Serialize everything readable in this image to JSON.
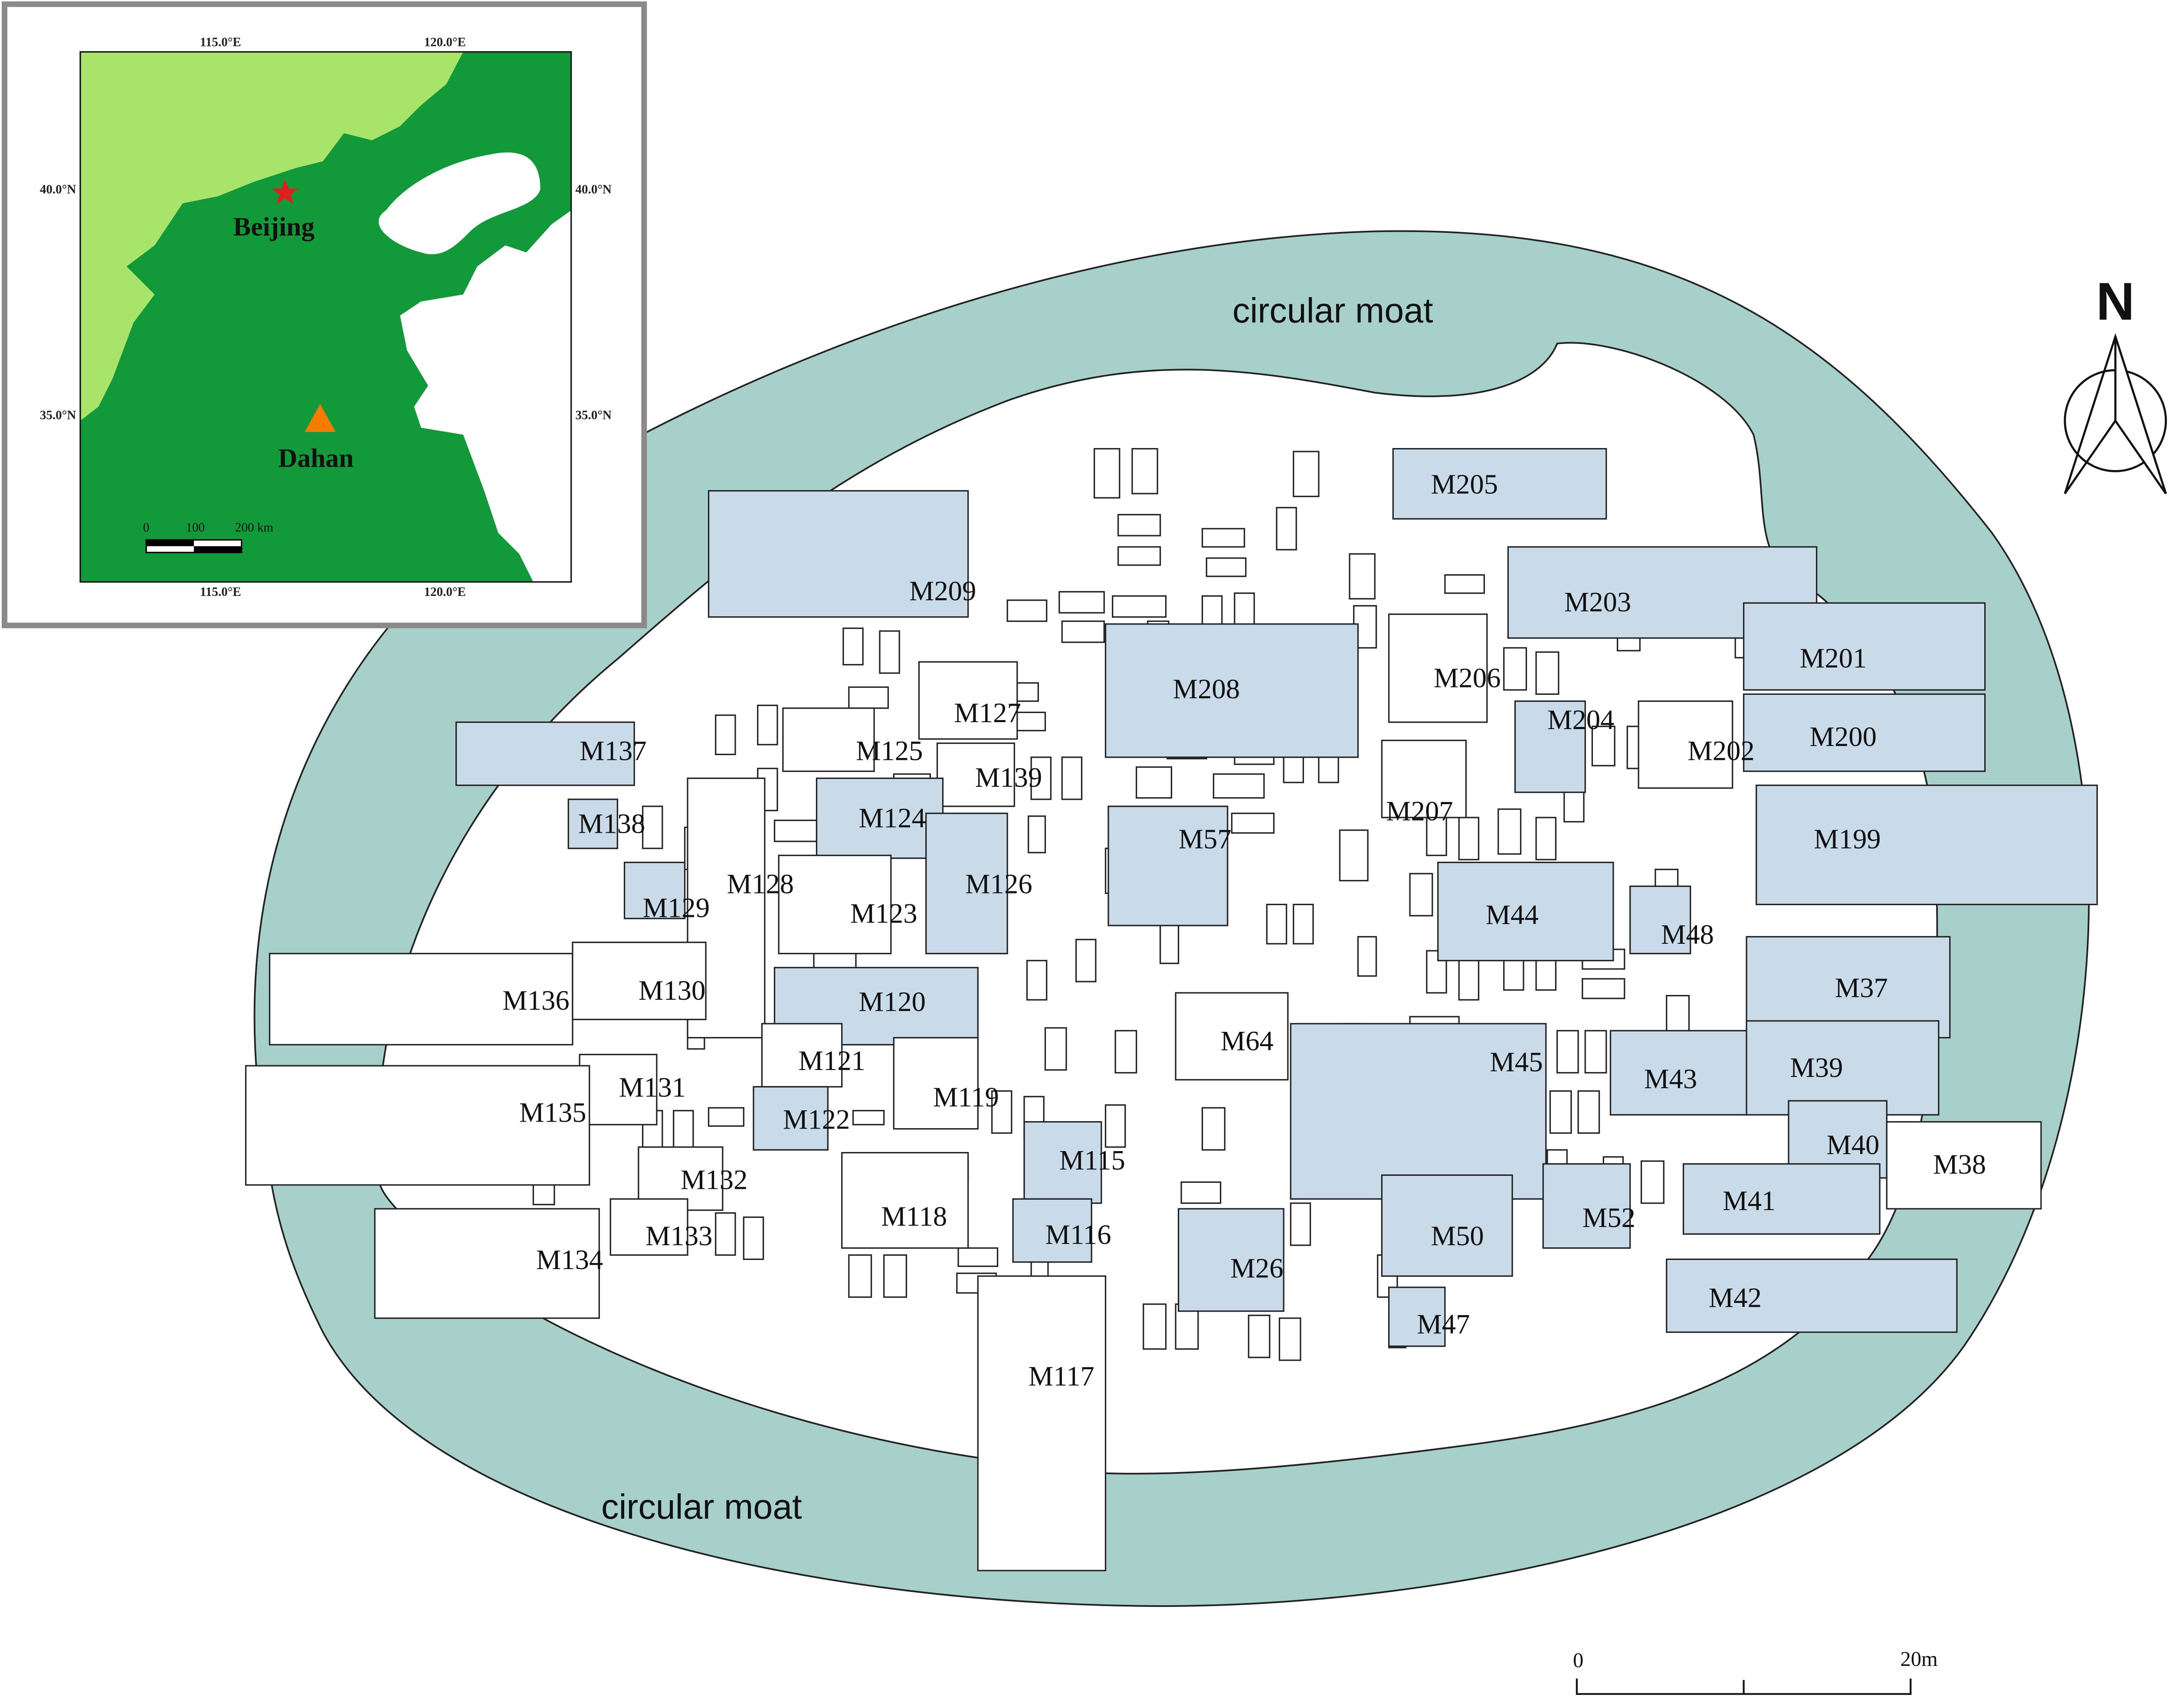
{
  "colors": {
    "moat": "#a8d0ca",
    "shaded_tomb": "#c9dbe8",
    "plain_tomb": "#ffffff",
    "lowland": "#129a3a",
    "highland": "#a8e46a",
    "beijing_marker": "#e02020",
    "dahan_marker": "#f57c00"
  },
  "moat_labels": [
    "circular moat",
    "circular moat"
  ],
  "north_label": "N",
  "scale_bar": {
    "start": "0",
    "end": "20m"
  },
  "inset": {
    "top_lon": [
      "115.0°E",
      "120.0°E"
    ],
    "bottom_lon": [
      "115.0°E",
      "120.0°E"
    ],
    "left_lat": [
      "40.0°N",
      "35.0°N"
    ],
    "right_lat": [
      "40.0°N",
      "35.0°N"
    ],
    "beijing": {
      "label": "Beijing",
      "icon": "star-icon"
    },
    "dahan": {
      "label": "Dahan",
      "icon": "triangle-icon"
    },
    "scale": [
      "0",
      "100",
      "200 km"
    ]
  },
  "tombs": [
    {
      "id": "M205",
      "shaded": true
    },
    {
      "id": "M209",
      "shaded": true
    },
    {
      "id": "M203",
      "shaded": true
    },
    {
      "id": "M201",
      "shaded": true
    },
    {
      "id": "M206",
      "shaded": false
    },
    {
      "id": "M208",
      "shaded": true
    },
    {
      "id": "M127",
      "shaded": false
    },
    {
      "id": "M204",
      "shaded": true
    },
    {
      "id": "M202",
      "shaded": false
    },
    {
      "id": "M200",
      "shaded": true
    },
    {
      "id": "M137",
      "shaded": true
    },
    {
      "id": "M125",
      "shaded": false
    },
    {
      "id": "M139",
      "shaded": false
    },
    {
      "id": "M207",
      "shaded": false
    },
    {
      "id": "M124",
      "shaded": true
    },
    {
      "id": "M57",
      "shaded": true
    },
    {
      "id": "M199",
      "shaded": true
    },
    {
      "id": "M138",
      "shaded": true
    },
    {
      "id": "M126",
      "shaded": true
    },
    {
      "id": "M128",
      "shaded": false
    },
    {
      "id": "M129",
      "shaded": true
    },
    {
      "id": "M123",
      "shaded": false
    },
    {
      "id": "M44",
      "shaded": true
    },
    {
      "id": "M48",
      "shaded": true
    },
    {
      "id": "M37",
      "shaded": true
    },
    {
      "id": "M136",
      "shaded": false
    },
    {
      "id": "M130",
      "shaded": false
    },
    {
      "id": "M120",
      "shaded": true
    },
    {
      "id": "M64",
      "shaded": false
    },
    {
      "id": "M45",
      "shaded": true
    },
    {
      "id": "M43",
      "shaded": true
    },
    {
      "id": "M39",
      "shaded": true
    },
    {
      "id": "M121",
      "shaded": false
    },
    {
      "id": "M131",
      "shaded": false
    },
    {
      "id": "M119",
      "shaded": false
    },
    {
      "id": "M135",
      "shaded": false
    },
    {
      "id": "M122",
      "shaded": true
    },
    {
      "id": "M40",
      "shaded": true
    },
    {
      "id": "M38",
      "shaded": false
    },
    {
      "id": "M115",
      "shaded": true
    },
    {
      "id": "M132",
      "shaded": false
    },
    {
      "id": "M41",
      "shaded": true
    },
    {
      "id": "M52",
      "shaded": true
    },
    {
      "id": "M118",
      "shaded": false
    },
    {
      "id": "M50",
      "shaded": true
    },
    {
      "id": "M116",
      "shaded": true
    },
    {
      "id": "M133",
      "shaded": false
    },
    {
      "id": "M134",
      "shaded": false
    },
    {
      "id": "M26",
      "shaded": true
    },
    {
      "id": "M42",
      "shaded": true
    },
    {
      "id": "M47",
      "shaded": true
    },
    {
      "id": "M117",
      "shaded": false
    }
  ]
}
